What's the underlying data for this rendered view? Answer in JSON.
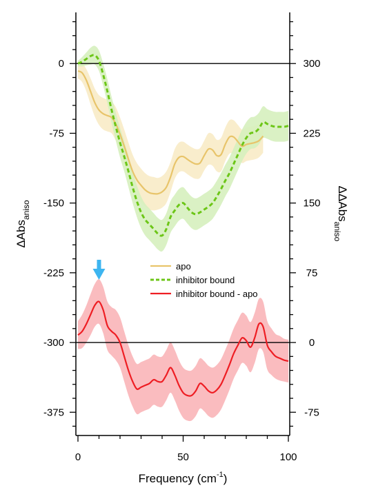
{
  "chart_data": {
    "type": "line",
    "xlabel": "Frequency (cm",
    "xlabel_sup": "-1",
    "xlabel_end": ")",
    "ylabel_left": "ΔAbs",
    "ylabel_left_sub": "aniso",
    "ylabel_right": "ΔΔAbs",
    "ylabel_right_sub": "aniso",
    "xlim": [
      0,
      100
    ],
    "ylim_left": [
      -400,
      55
    ],
    "ylim_right": [
      -100,
      355
    ],
    "x_ticks": [
      0,
      50,
      100
    ],
    "x_tick_labels": [
      "0",
      "50",
      "100"
    ],
    "y_left_ticks": [
      0,
      -75,
      -150,
      -225,
      -300,
      -375
    ],
    "y_left_tick_labels": [
      "0",
      "-75",
      "-150",
      "-225",
      "-300",
      "-375"
    ],
    "y_right_ticks": [
      300,
      225,
      150,
      75,
      0,
      -75
    ],
    "y_right_tick_labels": [
      "300",
      "225",
      "150",
      "75",
      "0",
      "-75"
    ],
    "reference_lines_left": [
      0,
      -300
    ],
    "arrow_x": 10,
    "arrow_color": "#3db5f0",
    "legend": [
      {
        "label": "apo",
        "color": "#e8c46a",
        "style": "solid"
      },
      {
        "label": "inhibitor bound",
        "color": "#6cc617",
        "style": "dashed"
      },
      {
        "label": "inhibitor bound - apo",
        "color": "#ee1d23",
        "style": "solid"
      }
    ],
    "series": [
      {
        "name": "apo",
        "axis": "left",
        "color": "#e8c46a",
        "band_color": "#f8ebc7",
        "style": "solid",
        "x": [
          0,
          2,
          4,
          6,
          8,
          10,
          12,
          14,
          16,
          18,
          20,
          22,
          24,
          26,
          28,
          30,
          32,
          34,
          36,
          38,
          40,
          42,
          44,
          46,
          48,
          50,
          52,
          54,
          56,
          58,
          60,
          62,
          64,
          66,
          68,
          70,
          72,
          74,
          76,
          78,
          80,
          82,
          84,
          86,
          88
        ],
        "y": [
          -8,
          -10,
          -18,
          -30,
          -42,
          -50,
          -54,
          -56,
          -58,
          -65,
          -76,
          -89,
          -103,
          -116,
          -125,
          -131,
          -136,
          -139,
          -140,
          -140,
          -138,
          -133,
          -122,
          -108,
          -101,
          -100,
          -103,
          -106,
          -108,
          -107,
          -99,
          -92,
          -93,
          -99,
          -98,
          -87,
          -79,
          -79,
          -84,
          -89,
          -87,
          -86,
          -85,
          -83,
          -78
        ],
        "err": [
          8,
          10,
          12,
          14,
          15,
          16,
          17,
          17,
          17,
          18,
          18,
          18,
          18,
          18,
          18,
          18,
          18,
          18,
          18,
          17,
          17,
          17,
          16,
          16,
          16,
          16,
          16,
          16,
          16,
          16,
          16,
          17,
          17,
          17,
          18,
          18,
          18,
          18,
          18,
          18,
          18,
          18,
          18,
          18,
          18
        ]
      },
      {
        "name": "inhibitor bound",
        "axis": "left",
        "color": "#6cc617",
        "band_color": "#d6efbe",
        "style": "dashed",
        "x": [
          0,
          2,
          4,
          6,
          8,
          10,
          12,
          14,
          16,
          18,
          20,
          22,
          24,
          26,
          28,
          30,
          32,
          34,
          36,
          38,
          40,
          42,
          44,
          46,
          48,
          50,
          52,
          54,
          56,
          58,
          60,
          62,
          64,
          66,
          68,
          70,
          72,
          74,
          76,
          78,
          80,
          82,
          84,
          86,
          88,
          90,
          92,
          94,
          96,
          98,
          100
        ],
        "y": [
          0,
          2,
          5,
          8,
          9,
          3,
          -12,
          -30,
          -50,
          -68,
          -85,
          -100,
          -116,
          -133,
          -148,
          -160,
          -168,
          -173,
          -178,
          -183,
          -185,
          -178,
          -165,
          -158,
          -152,
          -150,
          -155,
          -160,
          -162,
          -160,
          -157,
          -154,
          -150,
          -143,
          -135,
          -126,
          -118,
          -108,
          -98,
          -88,
          -80,
          -75,
          -74,
          -70,
          -63,
          -65,
          -67,
          -68,
          -68,
          -68,
          -67
        ],
        "err": [
          3,
          5,
          7,
          9,
          10,
          11,
          12,
          13,
          14,
          15,
          16,
          16,
          17,
          17,
          17,
          17,
          17,
          17,
          17,
          17,
          17,
          17,
          17,
          17,
          17,
          17,
          17,
          17,
          17,
          17,
          17,
          17,
          17,
          17,
          17,
          17,
          17,
          17,
          17,
          17,
          17,
          17,
          17,
          17,
          17,
          16,
          16,
          16,
          16,
          16,
          16
        ]
      },
      {
        "name": "inhibitor bound - apo",
        "axis": "right",
        "color": "#ee1d23",
        "band_color": "#f9b5b8",
        "style": "solid",
        "x": [
          0,
          2,
          4,
          6,
          8,
          10,
          12,
          14,
          16,
          18,
          20,
          22,
          24,
          26,
          28,
          30,
          32,
          34,
          36,
          38,
          40,
          42,
          44,
          46,
          48,
          50,
          52,
          54,
          56,
          58,
          60,
          62,
          64,
          66,
          68,
          70,
          72,
          74,
          76,
          78,
          80,
          82,
          84,
          86,
          88,
          90,
          92,
          94,
          96,
          98,
          100
        ],
        "y": [
          8,
          12,
          20,
          30,
          40,
          44,
          35,
          18,
          12,
          8,
          0,
          -15,
          -30,
          -42,
          -50,
          -48,
          -46,
          -44,
          -40,
          -42,
          -42,
          -35,
          -27,
          -35,
          -46,
          -54,
          -57,
          -57,
          -52,
          -44,
          -47,
          -52,
          -54,
          -51,
          -45,
          -35,
          -24,
          -12,
          -3,
          5,
          2,
          -5,
          5,
          20,
          17,
          -3,
          -10,
          -15,
          -17,
          -19,
          -20
        ],
        "err": [
          15,
          18,
          20,
          22,
          23,
          24,
          25,
          26,
          26,
          27,
          27,
          27,
          27,
          27,
          27,
          27,
          27,
          27,
          27,
          27,
          27,
          27,
          27,
          27,
          27,
          27,
          27,
          27,
          27,
          27,
          27,
          27,
          27,
          27,
          27,
          27,
          27,
          27,
          27,
          27,
          27,
          27,
          27,
          27,
          27,
          26,
          25,
          24,
          24,
          23,
          23
        ]
      }
    ]
  }
}
